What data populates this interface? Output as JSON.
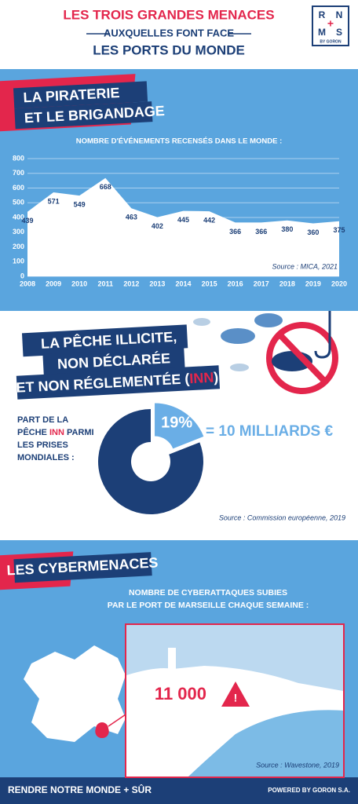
{
  "header": {
    "title": "LES TROIS GRANDES MENACES",
    "subtitle": "AUXQUELLES FONT FACE",
    "title2": "LES PORTS DU MONDE",
    "logo": {
      "letters": [
        "R",
        "N",
        "M",
        "S"
      ],
      "plus": "+",
      "by": "BY GORON"
    }
  },
  "sections": [
    {
      "heading": [
        "LA PIRATERIE",
        "ET LE BRIGANDAGE"
      ]
    },
    {
      "heading": [
        "LA PÊCHE ILLICITE,",
        "NON DÉCLARÉE",
        [
          "ET NON RÉGLEMENTÉE (",
          "INN",
          ")"
        ]
      ]
    },
    {
      "heading": [
        "LES CYBERMENACES"
      ],
      "text": [
        "NOMBRE DE CYBERATTAQUES SUBIES",
        "PAR LE PORT DE MARSEILLE CHAQUE SEMAINE :"
      ],
      "figure": "11 000",
      "source": "Source : Wavestone, 2019"
    }
  ],
  "chart_data": [
    {
      "type": "area",
      "title": "NOMBRE D'ÉVÉNEMENTS RECENSÉS DANS LE MONDE :",
      "x": [
        2008,
        2009,
        2010,
        2011,
        2012,
        2013,
        2014,
        2015,
        2016,
        2017,
        2018,
        2019,
        2020
      ],
      "values": [
        439,
        571,
        549,
        668,
        463,
        402,
        445,
        442,
        366,
        366,
        380,
        360,
        375
      ],
      "xlim": [
        2008,
        2020
      ],
      "xticks": [
        2008,
        2009,
        2010,
        2011,
        2012,
        2013,
        2014,
        2015,
        2016,
        2017,
        2018,
        2019,
        2020
      ],
      "ylim": [
        0,
        800
      ],
      "yticks": [
        0,
        100,
        200,
        300,
        400,
        500,
        600,
        700,
        800
      ],
      "grid": true,
      "color": "#ffffff",
      "source": "Source : MICA, 2021"
    },
    {
      "type": "pie",
      "title": [
        "PART DE LA",
        [
          "PÊCHE ",
          "INN",
          " PARMI"
        ],
        "LES PRISES",
        "MONDIALES :"
      ],
      "values": [
        19,
        81
      ],
      "value_labels": [
        "19%",
        null
      ],
      "colors": [
        "#6aaee6",
        "#1c3f77"
      ],
      "annotation": "= 10 MILLIARDS €",
      "source": "Source : Commission européenne, 2019"
    }
  ],
  "footer": {
    "slogan": "RENDRE NOTRE MONDE + SÛR",
    "powered": "POWERED BY GORON S.A."
  }
}
